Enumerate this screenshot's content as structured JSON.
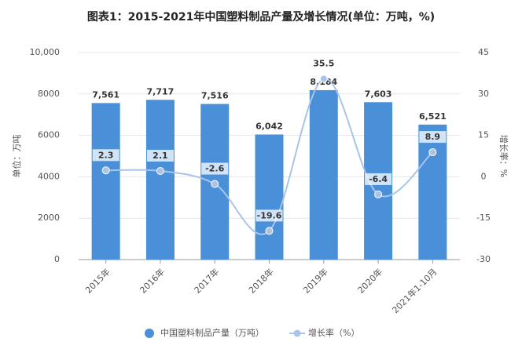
{
  "chart_data": {
    "type": "bar_line",
    "title": "图表1：2015-2021年中国塑料制品产量及增长情况(单位：万吨，%)",
    "categories": [
      "2015年",
      "2016年",
      "2017年",
      "2018年",
      "2019年",
      "2020年",
      "2021年1-10月"
    ],
    "series": [
      {
        "name": "中国塑料制品产量（万吨）",
        "color": "#4a90d9",
        "type": "bar",
        "values": [
          7561,
          7717,
          7516,
          6042,
          8184,
          7603,
          6521
        ],
        "value_labels": [
          "7,561",
          "7,717",
          "7,516",
          "6,042",
          "8,184",
          "7,603",
          "6,521"
        ]
      },
      {
        "name": "增长率（%）",
        "color": "#a9c4e8",
        "type": "line",
        "axis": "y2",
        "values": [
          2.3,
          2.1,
          -2.6,
          -19.6,
          35.5,
          -6.4,
          8.9
        ]
      }
    ],
    "ylabel": "单位：万吨",
    "y2label": "增长率：%",
    "ylim": [
      0,
      10000
    ],
    "yticks": [
      0,
      2000,
      4000,
      6000,
      8000,
      {
        "value": 10000,
        "label": "10,000"
      }
    ],
    "y2lim": [
      -30,
      45
    ],
    "y2ticks": [
      -30,
      -15,
      0,
      15,
      30,
      45
    ],
    "grid": true
  }
}
